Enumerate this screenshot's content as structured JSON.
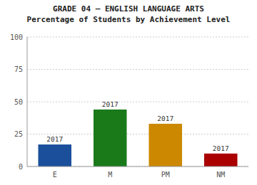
{
  "chart_data": {
    "type": "bar",
    "title": "GRADE 04 – ENGLISH LANGUAGE ARTS",
    "subtitle": "Percentage of Students by Achievement Level",
    "categories": [
      "E",
      "M",
      "PM",
      "NM"
    ],
    "values": [
      17,
      44,
      33,
      10
    ],
    "colors": [
      "#1b4f9c",
      "#1a7a1a",
      "#cc8800",
      "#aa0000"
    ],
    "annotations": [
      "2017",
      "2017",
      "2017",
      "2017"
    ],
    "ylim": [
      0,
      100
    ],
    "yticks": [
      0,
      25,
      50,
      75,
      100
    ],
    "grid": true
  }
}
